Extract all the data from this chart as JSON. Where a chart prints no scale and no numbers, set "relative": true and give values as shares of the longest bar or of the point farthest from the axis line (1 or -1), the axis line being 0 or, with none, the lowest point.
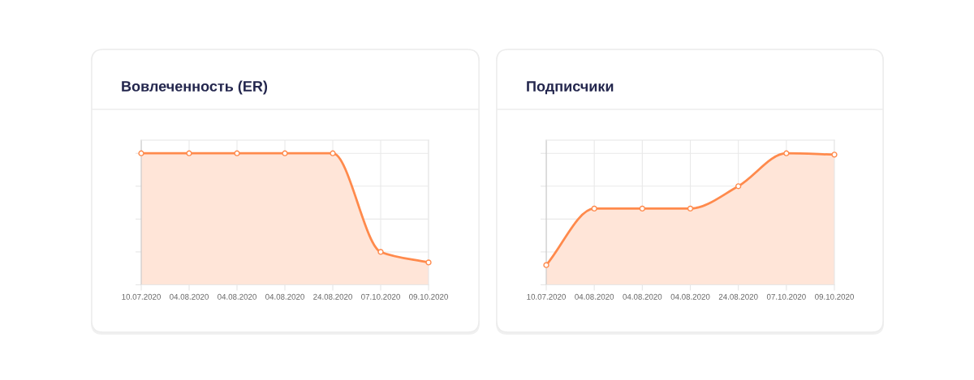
{
  "chart_data": [
    {
      "type": "area",
      "title": "Вовлеченность (ER)",
      "categories": [
        "10.07.2020",
        "04.08.2020",
        "04.08.2020",
        "04.08.2020",
        "24.08.2020",
        "07.10.2020",
        "09.10.2020"
      ],
      "series": [
        {
          "color": "#ff8a4c",
          "values": [
            1,
            1,
            1,
            1,
            1,
            0.25,
            0.17
          ]
        }
      ],
      "relative": true,
      "grid": true,
      "marker": "circle"
    },
    {
      "type": "area",
      "title": "Подписчики",
      "categories": [
        "10.07.2020",
        "04.08.2020",
        "04.08.2020",
        "04.08.2020",
        "24.08.2020",
        "07.10.2020",
        "09.10.2020"
      ],
      "series": [
        {
          "color": "#ff8a4c",
          "values": [
            0.15,
            0.58,
            0.58,
            0.58,
            0.75,
            1,
            0.99
          ]
        }
      ],
      "relative": true,
      "grid": true,
      "marker": "circle"
    }
  ]
}
